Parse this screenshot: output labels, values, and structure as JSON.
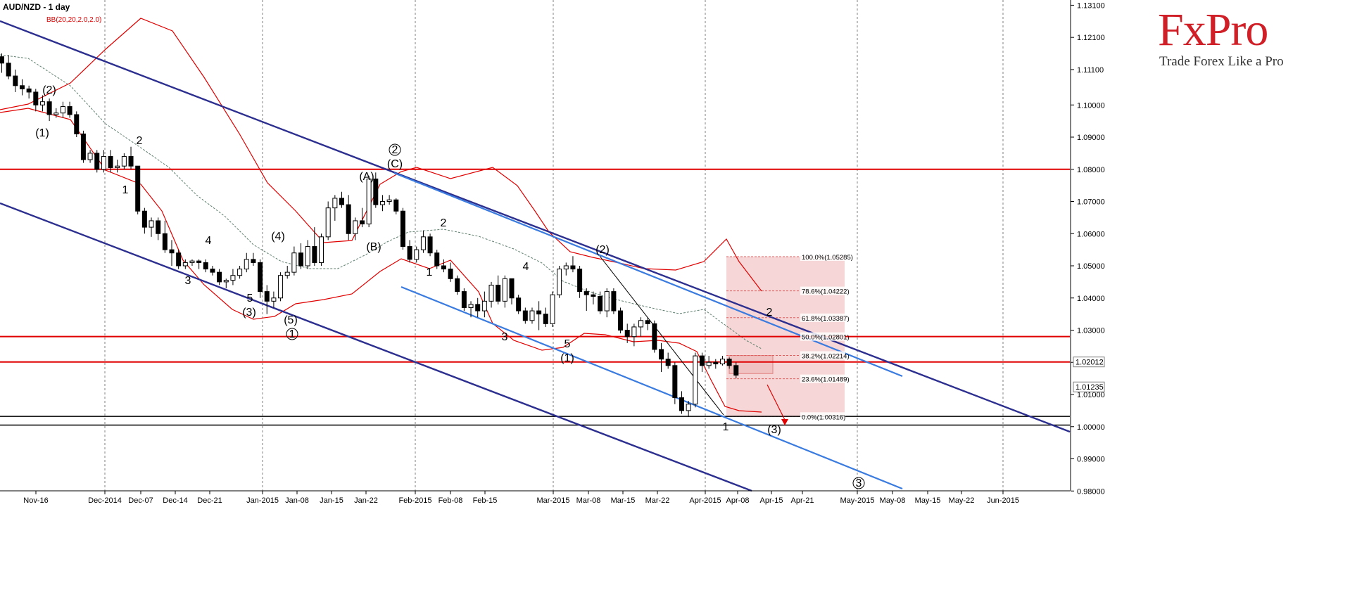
{
  "header": {
    "title": "AUD/NZD - 1 day",
    "indicator": "BB(20,20,2.0,2.0)"
  },
  "brand": {
    "logo_text": "FxPro",
    "tagline": "Trade Forex Like a Pro",
    "color": "#d01f27"
  },
  "colors": {
    "support_resistance": "#e00000",
    "channel_dark": "#2c2f8f",
    "channel_light": "#3a7be0",
    "bollinger": "#e00000",
    "bollinger_mid": "#5f7f6f",
    "fib_zone": "#f6d6d6",
    "axis_text": "#000000"
  },
  "chart_data": {
    "type": "candlestick",
    "symbol": "AUD/NZD",
    "timeframe": "1 day",
    "ylim": [
      0.9858,
      1.1313
    ],
    "y_ticks": [
      "1.13100",
      "1.12100",
      "1.11100",
      "1.10000",
      "1.09000",
      "1.08000",
      "1.07000",
      "1.06000",
      "1.05000",
      "1.04000",
      "1.03000",
      "1.02000",
      "1.01000",
      "1.00000",
      "0.99000",
      "0.98000"
    ],
    "x_ticks": [
      "Nov-16",
      "Dec-2014",
      "Dec-07",
      "Dec-14",
      "Dec-21",
      "Jan-2015",
      "Jan-08",
      "Jan-15",
      "Jan-22",
      "Feb-2015",
      "Feb-08",
      "Feb-15",
      "Mar-2015",
      "Mar-08",
      "Mar-15",
      "Mar-22",
      "Apr-2015",
      "Apr-08",
      "Apr-15",
      "Apr-21",
      "May-2015",
      "May-08",
      "May-15",
      "May-22",
      "Jun-2015"
    ],
    "price_tags": [
      "1.02012",
      "1.01235"
    ],
    "horizontal_levels": [
      {
        "value": 1.08,
        "color": "red"
      },
      {
        "value": 1.028,
        "color": "red"
      },
      {
        "value": 1.0201,
        "color": "red"
      },
      {
        "value": 1.0032,
        "color": "black"
      },
      {
        "value": 1.0005,
        "color": "black"
      }
    ],
    "fibonacci": [
      {
        "label": "100.0%(1.05285)",
        "value": 1.05285
      },
      {
        "label": "78.6%(1.04222)",
        "value": 1.04222
      },
      {
        "label": "61.8%(1.03387)",
        "value": 1.03387
      },
      {
        "label": "50.0%(1.02801)",
        "value": 1.02801
      },
      {
        "label": "38.2%(1.02214)",
        "value": 1.02214
      },
      {
        "label": "23.6%(1.01489)",
        "value": 1.01489
      },
      {
        "label": "0.0%(1.00316)",
        "value": 1.00316
      }
    ],
    "candles": [
      [
        1.115,
        1.116,
        1.11,
        1.113
      ],
      [
        1.113,
        1.1155,
        1.108,
        1.109
      ],
      [
        1.109,
        1.111,
        1.104,
        1.106
      ],
      [
        1.106,
        1.108,
        1.103,
        1.105
      ],
      [
        1.105,
        1.106,
        1.102,
        1.104
      ],
      [
        1.104,
        1.105,
        1.098,
        1.1
      ],
      [
        1.1,
        1.103,
        1.098,
        1.101
      ],
      [
        1.101,
        1.102,
        1.095,
        1.097
      ],
      [
        1.097,
        1.099,
        1.096,
        1.0975
      ],
      [
        1.0975,
        1.101,
        1.096,
        1.0995
      ],
      [
        1.0995,
        1.101,
        1.096,
        1.097
      ],
      [
        1.097,
        1.098,
        1.09,
        1.091
      ],
      [
        1.091,
        1.092,
        1.082,
        1.083
      ],
      [
        1.083,
        1.086,
        1.082,
        1.085
      ],
      [
        1.085,
        1.086,
        1.079,
        1.08
      ],
      [
        1.08,
        1.086,
        1.079,
        1.084
      ],
      [
        1.084,
        1.086,
        1.079,
        1.0805
      ],
      [
        1.0805,
        1.083,
        1.079,
        1.081
      ],
      [
        1.081,
        1.085,
        1.08,
        1.084
      ],
      [
        1.084,
        1.087,
        1.08,
        1.081
      ],
      [
        1.081,
        1.081,
        1.066,
        1.067
      ],
      [
        1.067,
        1.068,
        1.06,
        1.062
      ],
      [
        1.062,
        1.065,
        1.059,
        1.064
      ],
      [
        1.064,
        1.065,
        1.058,
        1.06
      ],
      [
        1.06,
        1.064,
        1.054,
        1.055
      ],
      [
        1.055,
        1.058,
        1.05,
        1.054
      ],
      [
        1.054,
        1.055,
        1.049,
        1.05
      ],
      [
        1.05,
        1.052,
        1.049,
        1.051
      ],
      [
        1.051,
        1.052,
        1.05,
        1.0515
      ],
      [
        1.0515,
        1.052,
        1.049,
        1.051
      ],
      [
        1.051,
        1.052,
        1.048,
        1.049
      ],
      [
        1.049,
        1.05,
        1.047,
        1.048
      ],
      [
        1.048,
        1.049,
        1.044,
        1.045
      ],
      [
        1.045,
        1.046,
        1.043,
        1.0455
      ],
      [
        1.0455,
        1.049,
        1.044,
        1.047
      ],
      [
        1.047,
        1.05,
        1.046,
        1.049
      ],
      [
        1.049,
        1.054,
        1.048,
        1.052
      ],
      [
        1.052,
        1.054,
        1.05,
        1.051
      ],
      [
        1.051,
        1.052,
        1.04,
        1.042
      ],
      [
        1.042,
        1.044,
        1.035,
        1.039
      ],
      [
        1.039,
        1.042,
        1.037,
        1.04
      ],
      [
        1.04,
        1.048,
        1.039,
        1.047
      ],
      [
        1.047,
        1.05,
        1.046,
        1.048
      ],
      [
        1.048,
        1.056,
        1.047,
        1.054
      ],
      [
        1.054,
        1.057,
        1.049,
        1.05
      ],
      [
        1.05,
        1.058,
        1.049,
        1.056
      ],
      [
        1.056,
        1.062,
        1.05,
        1.051
      ],
      [
        1.051,
        1.06,
        1.05,
        1.059
      ],
      [
        1.059,
        1.07,
        1.058,
        1.068
      ],
      [
        1.068,
        1.072,
        1.064,
        1.071
      ],
      [
        1.071,
        1.073,
        1.068,
        1.069
      ],
      [
        1.069,
        1.072,
        1.058,
        1.06
      ],
      [
        1.06,
        1.065,
        1.058,
        1.064
      ],
      [
        1.064,
        1.068,
        1.062,
        1.063
      ],
      [
        1.063,
        1.078,
        1.062,
        1.077
      ],
      [
        1.077,
        1.079,
        1.068,
        1.069
      ],
      [
        1.069,
        1.072,
        1.067,
        1.07
      ],
      [
        1.07,
        1.072,
        1.069,
        1.0705
      ],
      [
        1.0705,
        1.071,
        1.066,
        1.067
      ],
      [
        1.067,
        1.068,
        1.055,
        1.056
      ],
      [
        1.056,
        1.058,
        1.051,
        1.052
      ],
      [
        1.052,
        1.056,
        1.051,
        1.055
      ],
      [
        1.055,
        1.061,
        1.054,
        1.059
      ],
      [
        1.059,
        1.06,
        1.053,
        1.054
      ],
      [
        1.054,
        1.055,
        1.049,
        1.05
      ],
      [
        1.05,
        1.052,
        1.048,
        1.049
      ],
      [
        1.049,
        1.051,
        1.045,
        1.046
      ],
      [
        1.046,
        1.047,
        1.041,
        1.042
      ],
      [
        1.042,
        1.043,
        1.036,
        1.037
      ],
      [
        1.037,
        1.039,
        1.034,
        1.038
      ],
      [
        1.038,
        1.04,
        1.034,
        1.036
      ],
      [
        1.036,
        1.042,
        1.034,
        1.039
      ],
      [
        1.039,
        1.045,
        1.037,
        1.044
      ],
      [
        1.044,
        1.047,
        1.038,
        1.039
      ],
      [
        1.039,
        1.047,
        1.037,
        1.046
      ],
      [
        1.046,
        1.046,
        1.038,
        1.04
      ],
      [
        1.04,
        1.041,
        1.035,
        1.036
      ],
      [
        1.036,
        1.037,
        1.032,
        1.033
      ],
      [
        1.033,
        1.037,
        1.032,
        1.036
      ],
      [
        1.036,
        1.039,
        1.03,
        1.035
      ],
      [
        1.035,
        1.037,
        1.031,
        1.032
      ],
      [
        1.032,
        1.042,
        1.031,
        1.041
      ],
      [
        1.041,
        1.05,
        1.04,
        1.049
      ],
      [
        1.049,
        1.051,
        1.047,
        1.05
      ],
      [
        1.05,
        1.053,
        1.048,
        1.049
      ],
      [
        1.049,
        1.05,
        1.04,
        1.042
      ],
      [
        1.042,
        1.043,
        1.036,
        1.041
      ],
      [
        1.041,
        1.042,
        1.038,
        1.0405
      ],
      [
        1.0405,
        1.042,
        1.035,
        1.036
      ],
      [
        1.036,
        1.043,
        1.034,
        1.042
      ],
      [
        1.042,
        1.043,
        1.035,
        1.036
      ],
      [
        1.036,
        1.037,
        1.029,
        1.03
      ],
      [
        1.03,
        1.032,
        1.026,
        1.028
      ],
      [
        1.028,
        1.032,
        1.025,
        1.031
      ],
      [
        1.031,
        1.034,
        1.028,
        1.033
      ],
      [
        1.033,
        1.034,
        1.03,
        1.032
      ],
      [
        1.032,
        1.033,
        1.023,
        1.024
      ],
      [
        1.024,
        1.026,
        1.017,
        1.021
      ],
      [
        1.021,
        1.023,
        1.018,
        1.019
      ],
      [
        1.019,
        1.02,
        1.007,
        1.009
      ],
      [
        1.009,
        1.011,
        1.004,
        1.005
      ],
      [
        1.005,
        1.008,
        1.003,
        1.007
      ],
      [
        1.007,
        1.023,
        1.006,
        1.022
      ],
      [
        1.022,
        1.023,
        1.017,
        1.019
      ],
      [
        1.019,
        1.022,
        1.018,
        1.02
      ],
      [
        1.02,
        1.021,
        1.018,
        1.0195
      ],
      [
        1.0195,
        1.022,
        1.019,
        1.021
      ],
      [
        1.021,
        1.0215,
        1.018,
        1.019
      ],
      [
        1.019,
        1.02,
        1.015,
        1.016
      ]
    ],
    "wave_labels": [
      "(2)",
      "(1)",
      "2",
      "1",
      "3",
      "4",
      "(3)",
      "5",
      "(4)",
      "(5)",
      "1",
      "(A)",
      "(B)",
      "(C)",
      "2",
      "2",
      "1",
      "4",
      "3",
      "5",
      "(1)",
      "(2)",
      "2",
      "1",
      "(3)",
      "3"
    ],
    "legend": "none",
    "grid": "vertical dashed"
  }
}
